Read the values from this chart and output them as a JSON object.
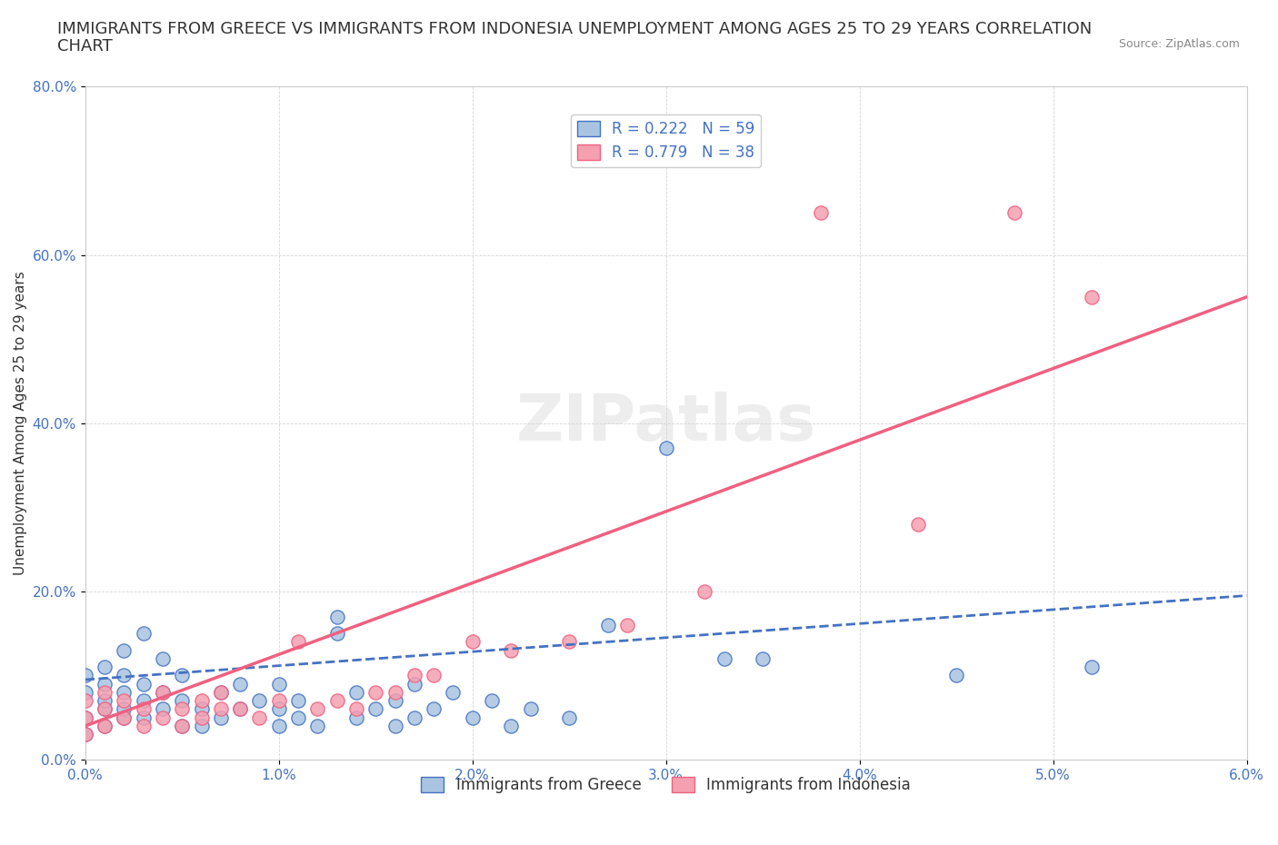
{
  "title_line1": "IMMIGRANTS FROM GREECE VS IMMIGRANTS FROM INDONESIA UNEMPLOYMENT AMONG AGES 25 TO 29 YEARS CORRELATION",
  "title_line2": "CHART",
  "source_text": "Source: ZipAtlas.com",
  "xlabel": "",
  "ylabel": "Unemployment Among Ages 25 to 29 years",
  "xlim": [
    0.0,
    0.06
  ],
  "ylim": [
    0.0,
    0.8
  ],
  "xticks": [
    0.0,
    0.01,
    0.02,
    0.03,
    0.04,
    0.05,
    0.06
  ],
  "xticklabels": [
    "0.0%",
    "1.0%",
    "2.0%",
    "3.0%",
    "4.0%",
    "5.0%",
    "6.0%"
  ],
  "yticks": [
    0.0,
    0.2,
    0.4,
    0.6,
    0.8
  ],
  "yticklabels": [
    "0.0%",
    "20.0%",
    "40.0%",
    "60.0%",
    "80.0%"
  ],
  "greece_color": "#a8c4e0",
  "indonesia_color": "#f4a0b0",
  "greece_line_color": "#4472c4",
  "indonesia_line_color": "#f06080",
  "greece_R": 0.222,
  "greece_N": 59,
  "indonesia_R": 0.779,
  "indonesia_N": 38,
  "watermark": "ZIPatlas",
  "title_fontsize": 13,
  "axis_label_fontsize": 11,
  "tick_fontsize": 11,
  "legend_fontsize": 12,
  "greece_scatter_x": [
    0.0,
    0.0,
    0.0,
    0.0,
    0.001,
    0.001,
    0.001,
    0.001,
    0.001,
    0.002,
    0.002,
    0.002,
    0.002,
    0.002,
    0.003,
    0.003,
    0.003,
    0.003,
    0.004,
    0.004,
    0.004,
    0.005,
    0.005,
    0.005,
    0.006,
    0.006,
    0.007,
    0.007,
    0.008,
    0.008,
    0.009,
    0.01,
    0.01,
    0.01,
    0.011,
    0.011,
    0.012,
    0.013,
    0.013,
    0.014,
    0.014,
    0.015,
    0.016,
    0.016,
    0.017,
    0.017,
    0.018,
    0.019,
    0.02,
    0.021,
    0.022,
    0.023,
    0.025,
    0.027,
    0.03,
    0.033,
    0.035,
    0.045,
    0.052
  ],
  "greece_scatter_y": [
    0.03,
    0.05,
    0.08,
    0.1,
    0.04,
    0.06,
    0.07,
    0.09,
    0.11,
    0.05,
    0.06,
    0.08,
    0.1,
    0.13,
    0.05,
    0.07,
    0.09,
    0.15,
    0.06,
    0.08,
    0.12,
    0.04,
    0.07,
    0.1,
    0.04,
    0.06,
    0.05,
    0.08,
    0.06,
    0.09,
    0.07,
    0.04,
    0.06,
    0.09,
    0.05,
    0.07,
    0.04,
    0.15,
    0.17,
    0.05,
    0.08,
    0.06,
    0.04,
    0.07,
    0.05,
    0.09,
    0.06,
    0.08,
    0.05,
    0.07,
    0.04,
    0.06,
    0.05,
    0.16,
    0.37,
    0.12,
    0.12,
    0.1,
    0.11
  ],
  "indonesia_scatter_x": [
    0.0,
    0.0,
    0.0,
    0.001,
    0.001,
    0.001,
    0.002,
    0.002,
    0.003,
    0.003,
    0.004,
    0.004,
    0.005,
    0.005,
    0.006,
    0.006,
    0.007,
    0.007,
    0.008,
    0.009,
    0.01,
    0.011,
    0.012,
    0.013,
    0.014,
    0.015,
    0.016,
    0.017,
    0.018,
    0.02,
    0.022,
    0.025,
    0.028,
    0.032,
    0.038,
    0.043,
    0.048,
    0.052
  ],
  "indonesia_scatter_y": [
    0.03,
    0.05,
    0.07,
    0.04,
    0.06,
    0.08,
    0.05,
    0.07,
    0.04,
    0.06,
    0.05,
    0.08,
    0.04,
    0.06,
    0.05,
    0.07,
    0.06,
    0.08,
    0.06,
    0.05,
    0.07,
    0.14,
    0.06,
    0.07,
    0.06,
    0.08,
    0.08,
    0.1,
    0.1,
    0.14,
    0.13,
    0.14,
    0.16,
    0.2,
    0.65,
    0.28,
    0.65,
    0.55
  ],
  "greece_trend_x": [
    0.0,
    0.06
  ],
  "greece_trend_y": [
    0.095,
    0.195
  ],
  "indonesia_trend_x": [
    0.0,
    0.06
  ],
  "indonesia_trend_y": [
    0.04,
    0.55
  ]
}
